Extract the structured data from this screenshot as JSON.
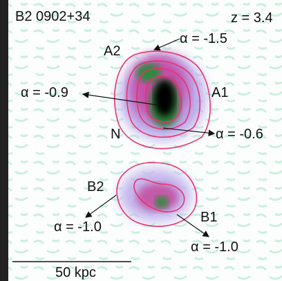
{
  "title": "B2 0902+34",
  "redshift": "z = 3.4",
  "labels": {
    "a2": "A2",
    "alpha_a2": "α = -1.5",
    "alpha_core": "α = -0.9",
    "a1": "A1",
    "n": "N",
    "alpha_n": "α = -0.6",
    "b2": "B2",
    "b1": "B1",
    "alpha_b2": "α = -1.0",
    "alpha_b1": "α = -1.0"
  },
  "scale_bar": "50 kpc"
}
